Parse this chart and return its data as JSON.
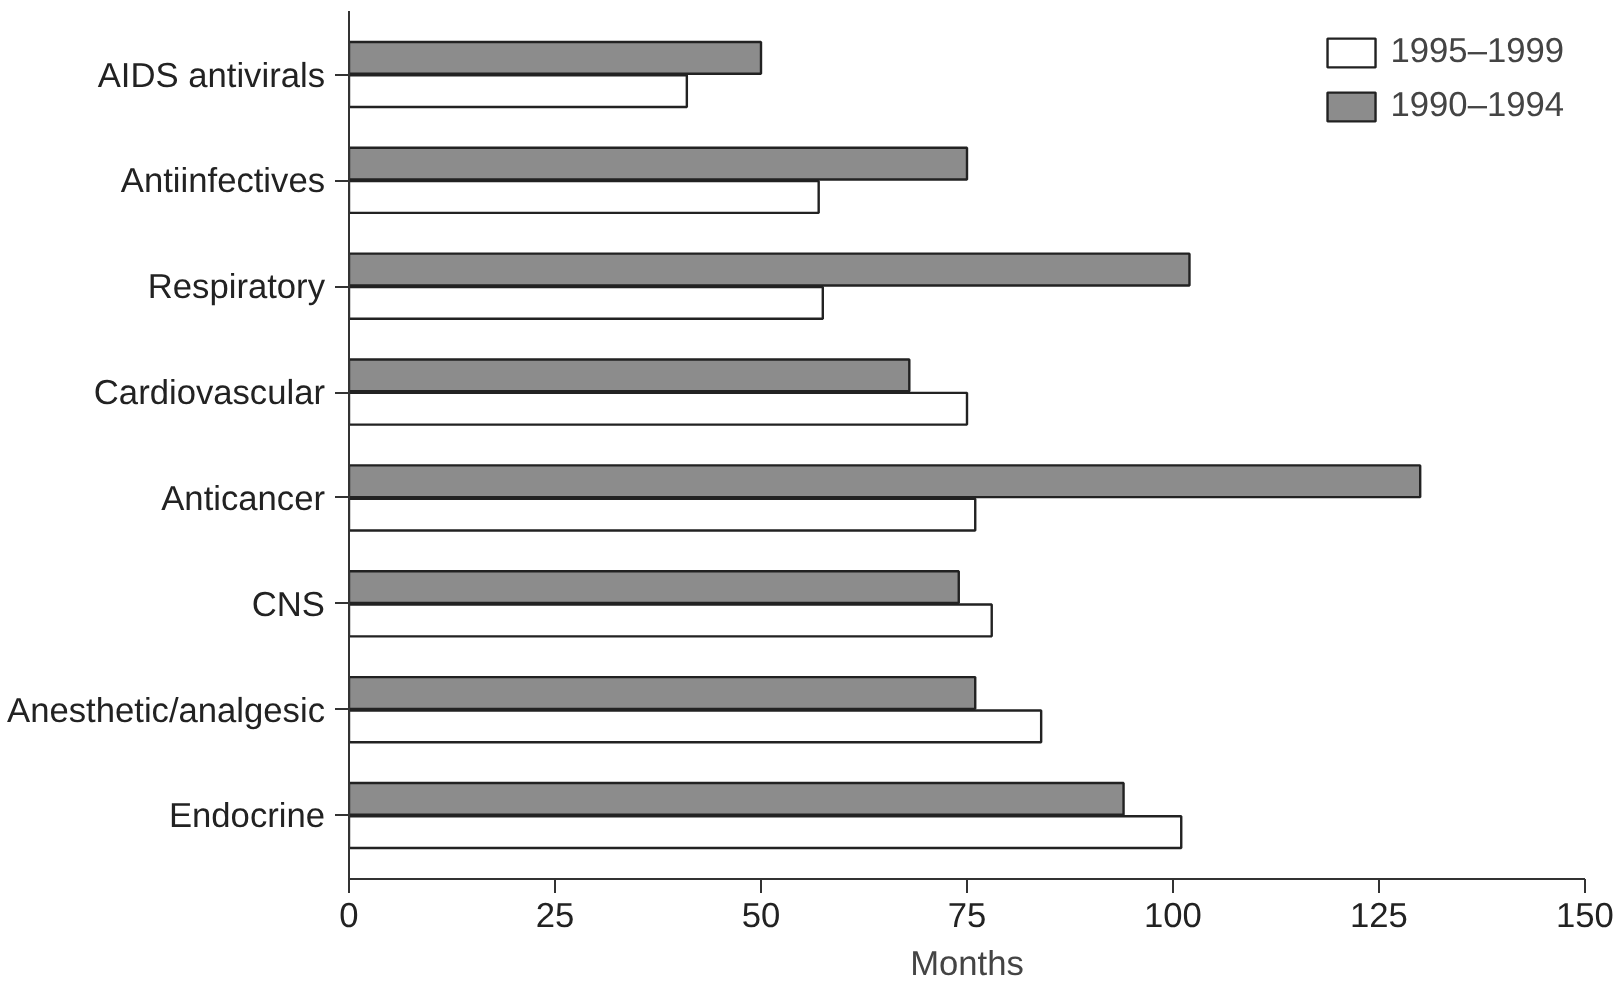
{
  "chart_data": {
    "type": "bar",
    "orientation": "horizontal",
    "xlabel": "Months",
    "categories": [
      "AIDS antivirals",
      "Antiinfectives",
      "Respiratory",
      "Cardiovascular",
      "Anticancer",
      "CNS",
      "Anesthetic/analgesic",
      "Endocrine"
    ],
    "series": [
      {
        "name": "1995–1999",
        "color": "#ffffff",
        "values": [
          41,
          57,
          57.5,
          75,
          76,
          78,
          84,
          101
        ]
      },
      {
        "name": "1990–1994",
        "color": "#8c8c8c",
        "values": [
          50,
          75,
          102,
          68,
          130,
          74,
          76,
          94
        ]
      }
    ],
    "xlim": [
      0,
      150
    ],
    "xticks": [
      0,
      25,
      50,
      75,
      100,
      125,
      150
    ],
    "grid": false,
    "legend": "top right"
  }
}
